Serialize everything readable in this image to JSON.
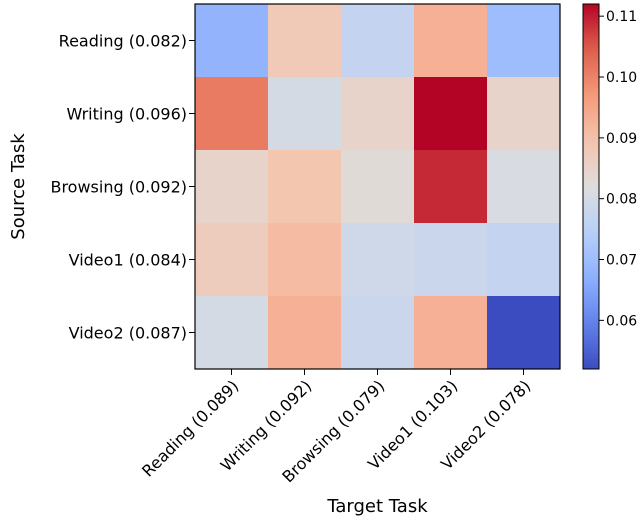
{
  "chart_data": {
    "type": "heatmap",
    "title": "",
    "xlabel": "Target Task",
    "ylabel": "Source Task",
    "x_categories": [
      "Reading (0.089)",
      "Writing (0.092)",
      "Browsing (0.079)",
      "Video1 (0.103)",
      "Video2 (0.078)"
    ],
    "y_categories": [
      "Reading (0.082)",
      "Writing (0.096)",
      "Browsing (0.092)",
      "Video1 (0.084)",
      "Video2 (0.087)"
    ],
    "values": [
      [
        0.068,
        0.088,
        0.077,
        0.093,
        0.07
      ],
      [
        0.101,
        0.08,
        0.085,
        0.112,
        0.085
      ],
      [
        0.085,
        0.089,
        0.083,
        0.109,
        0.081
      ],
      [
        0.087,
        0.091,
        0.079,
        0.078,
        0.077
      ],
      [
        0.08,
        0.093,
        0.078,
        0.093,
        0.052
      ]
    ],
    "colormap": "coolwarm",
    "vmin": 0.052,
    "vmax": 0.112,
    "colorbar": {
      "ticks": [
        0.06,
        0.07,
        0.08,
        0.09,
        0.1,
        0.11
      ],
      "tick_labels": [
        "0.06",
        "0.07",
        "0.08",
        "0.09",
        "0.10",
        "0.11"
      ]
    }
  }
}
